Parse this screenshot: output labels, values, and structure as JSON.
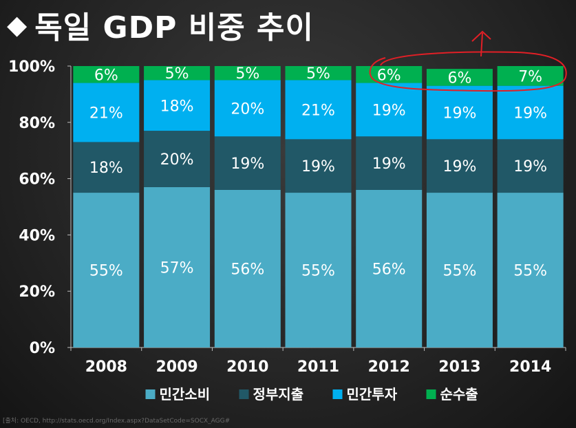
{
  "title": {
    "icon": "diamond-icon",
    "text": "독일 GDP 비중 추이"
  },
  "source": "[출처: OECD, http://stats.oecd.org/Index.aspx?DataSetCode=SOCX_AGG#",
  "colors": {
    "background": "#222222",
    "민간소비": "#4bacc6",
    "정부지출": "#215867",
    "민간투자": "#00b0f0",
    "순수출": "#00b050",
    "annotation": "#e21f26"
  },
  "chart_data": {
    "type": "bar",
    "stacked": true,
    "categories": [
      "2008",
      "2009",
      "2010",
      "2011",
      "2012",
      "2013",
      "2014"
    ],
    "series": [
      {
        "name": "민간소비",
        "values": [
          55,
          57,
          56,
          55,
          56,
          55,
          55
        ],
        "color": "#4bacc6"
      },
      {
        "name": "정부지출",
        "values": [
          18,
          20,
          19,
          19,
          19,
          19,
          19
        ],
        "color": "#215867"
      },
      {
        "name": "민간투자",
        "values": [
          21,
          18,
          20,
          21,
          19,
          19,
          19
        ],
        "color": "#00b0f0"
      },
      {
        "name": "순수출",
        "values": [
          6,
          5,
          5,
          5,
          6,
          6,
          7
        ],
        "color": "#00b050"
      }
    ],
    "ylim": [
      0,
      100
    ],
    "yticks": [
      0,
      20,
      40,
      60,
      80,
      100
    ],
    "ytick_labels": [
      "0%",
      "20%",
      "40%",
      "60%",
      "80%",
      "100%"
    ],
    "legend_position": "bottom",
    "grid": false,
    "annotation": {
      "type": "hand-drawn ellipse with upward arrow",
      "highlight": "순수출",
      "categories": [
        "2012",
        "2013",
        "2014"
      ]
    }
  }
}
